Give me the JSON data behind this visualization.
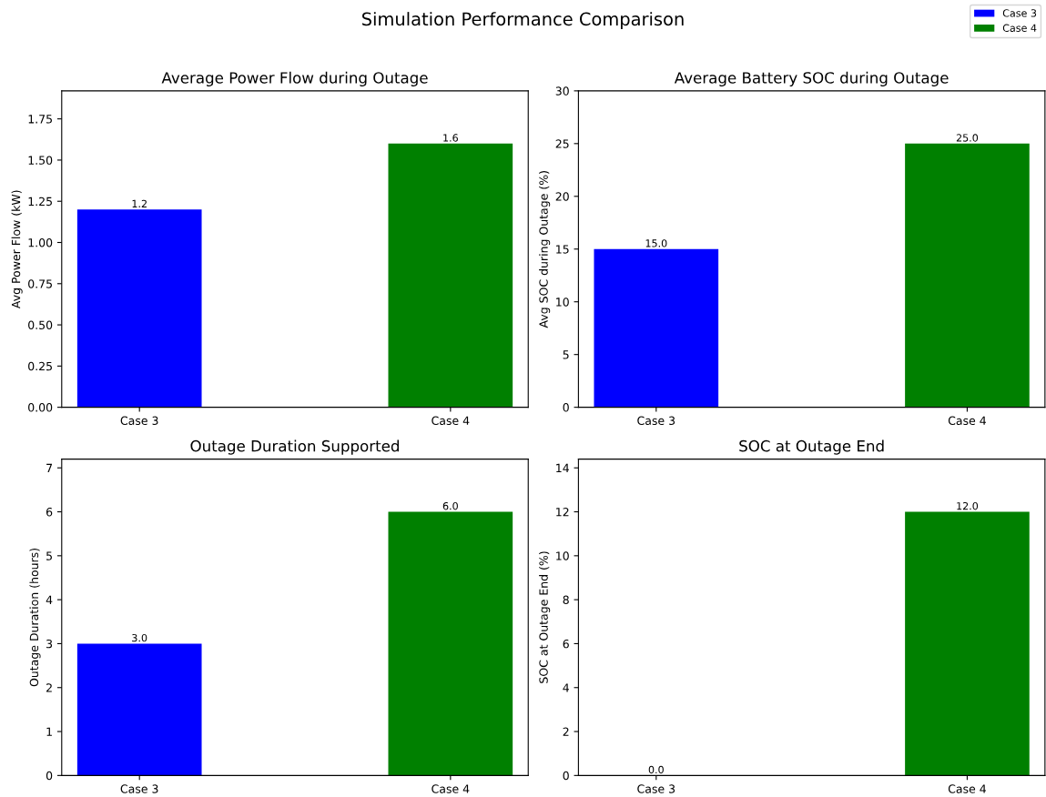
{
  "chart_data": [
    {
      "type": "bar",
      "title": "Average Power Flow during Outage",
      "ylabel": "Avg Power Flow (kW)",
      "categories": [
        "Case 3",
        "Case 4"
      ],
      "series": [
        {
          "name": "Case 3",
          "color": "#0000ff",
          "values": [
            1.2,
            null
          ],
          "value_labels": [
            "1.2",
            null
          ]
        },
        {
          "name": "Case 4",
          "color": "#008000",
          "values": [
            null,
            1.6
          ],
          "value_labels": [
            null,
            "1.6"
          ]
        }
      ],
      "ylim": [
        0,
        1.92
      ],
      "yticks": [
        {
          "value": 0,
          "label": "0.00"
        },
        {
          "value": 0.25,
          "label": "0.25"
        },
        {
          "value": 0.5,
          "label": "0.50"
        },
        {
          "value": 0.75,
          "label": "0.75"
        },
        {
          "value": 1.0,
          "label": "1.00"
        },
        {
          "value": 1.25,
          "label": "1.25"
        },
        {
          "value": 1.5,
          "label": "1.50"
        },
        {
          "value": 1.75,
          "label": "1.75"
        }
      ],
      "legend": "top right",
      "annotations": [
        "Simulation Performance Comparison"
      ]
    },
    {
      "type": "bar",
      "title": "Average Battery SOC during Outage",
      "ylabel": "Avg SOC during Outage (%)",
      "categories": [
        "Case 3",
        "Case 4"
      ],
      "series": [
        {
          "color": "#0000ff",
          "values": [
            15,
            null
          ],
          "value_labels": [
            "15.0",
            null
          ]
        },
        {
          "color": "#008000",
          "values": [
            null,
            25
          ],
          "value_labels": [
            null,
            "25.0"
          ]
        }
      ],
      "ylim": [
        0,
        30
      ],
      "yticks": [
        0,
        5,
        10,
        15,
        20,
        25,
        30
      ]
    },
    {
      "type": "bar",
      "title": "Outage Duration Supported",
      "ylabel": "Outage Duration (hours)",
      "categories": [
        "Case 3",
        "Case 4"
      ],
      "series": [
        {
          "color": "#0000ff",
          "values": [
            3,
            null
          ],
          "value_labels": [
            "3.0",
            null
          ]
        },
        {
          "color": "#008000",
          "values": [
            null,
            6
          ],
          "value_labels": [
            null,
            "6.0"
          ]
        }
      ],
      "ylim": [
        0,
        7.2
      ],
      "yticks": [
        0,
        1,
        2,
        3,
        4,
        5,
        6,
        7
      ]
    },
    {
      "type": "bar",
      "title": "SOC at Outage End",
      "ylabel": "SOC at Outage End (%)",
      "categories": [
        "Case 3",
        "Case 4"
      ],
      "series": [
        {
          "color": "#0000ff",
          "values": [
            0,
            null
          ],
          "value_labels": [
            "0.0",
            null
          ]
        },
        {
          "color": "#008000",
          "values": [
            null,
            12
          ],
          "value_labels": [
            null,
            "12.0"
          ]
        }
      ],
      "ylim": [
        0,
        14.4
      ],
      "yticks": [
        0,
        2,
        4,
        6,
        8,
        10,
        12,
        14
      ]
    }
  ]
}
